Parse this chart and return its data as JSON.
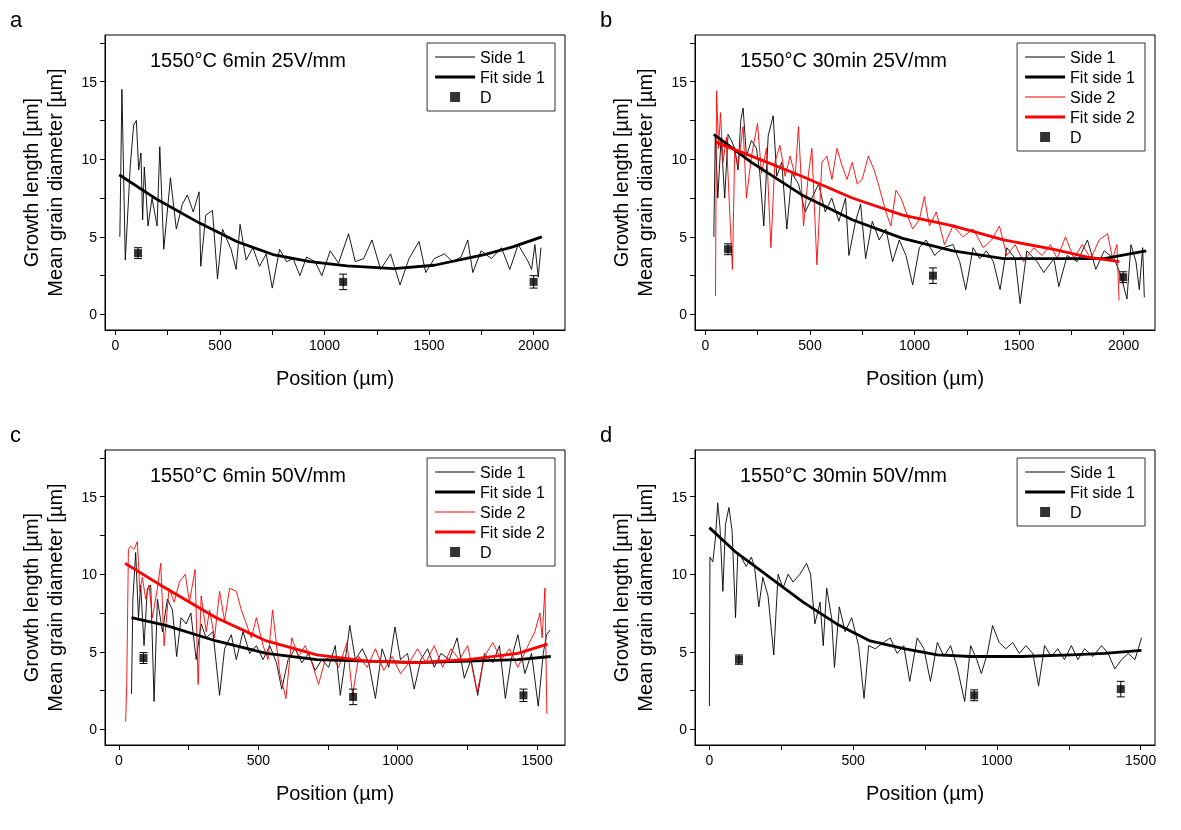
{
  "chart_data": [
    {
      "type": "line",
      "title": "1550°C 6min 25V/mm",
      "annotations": [
        "a"
      ],
      "xlabel": "Position (µm)",
      "ylabel": "Growth length [µm]\nMean grain diameter [µm]",
      "xlim": [
        -50,
        2150
      ],
      "ylim": [
        -1,
        18
      ],
      "xticks": [
        0,
        {
          "value": 250,
          "label": null
        },
        500,
        {
          "value": 750,
          "label": null
        },
        1000,
        {
          "value": 1250,
          "label": null
        },
        1500,
        {
          "value": 1750,
          "label": null
        },
        2000
      ],
      "yticks": [
        0,
        {
          "value": 2.5,
          "label": null
        },
        5,
        {
          "value": 7.5,
          "label": null
        },
        10,
        {
          "value": 12.5,
          "label": null
        },
        15,
        {
          "value": 17.5,
          "label": null
        }
      ],
      "legend": "top right",
      "grid": false,
      "series": [
        {
          "name": "Side 1",
          "type": "line",
          "color": "#000000",
          "x": [
            21,
            31,
            47,
            71,
            87,
            100,
            111,
            122,
            130,
            138,
            156,
            175,
            199,
            212,
            231,
            263,
            291,
            320,
            344,
            372,
            400,
            408,
            432,
            464,
            488,
            512,
            553,
            577,
            596,
            625,
            657,
            689,
            721,
            750,
            785,
            818,
            850,
            882,
            914,
            955,
            987,
            1027,
            1067,
            1115,
            1147,
            1187,
            1227,
            1268,
            1316,
            1361,
            1404,
            1452,
            1484,
            1525,
            1573,
            1613,
            1653,
            1685,
            1709,
            1749,
            1798,
            1846,
            1886,
            1926,
            1974,
            1990,
            2006,
            2022,
            2035
          ],
          "values": [
            5.0,
            14.5,
            3.5,
            9.6,
            12.2,
            12.5,
            9.3,
            10.4,
            6.1,
            9.5,
            5.7,
            7.5,
            5.7,
            10.8,
            4.2,
            8.8,
            5.5,
            7.1,
            7.7,
            6.6,
            7.9,
            3.1,
            6.4,
            6.7,
            2.3,
            5.5,
            4.2,
            2.9,
            5.8,
            3.5,
            4.3,
            3.1,
            3.9,
            1.7,
            4.2,
            3.4,
            3.6,
            2.5,
            3.7,
            3.4,
            2.5,
            4.1,
            3.3,
            5.2,
            3.4,
            3.6,
            4.8,
            2.9,
            3.9,
            1.9,
            3.6,
            4.7,
            2.7,
            3.6,
            3.9,
            3.4,
            3.7,
            4.8,
            2.7,
            4.1,
            3.6,
            4.3,
            2.9,
            4.5,
            3.4,
            2.9,
            4.5,
            2.4,
            4.3
          ]
        },
        {
          "name": "Fit side 1",
          "type": "line",
          "color": "#000000",
          "x": [
            18,
            200,
            400,
            580,
            753,
            930,
            1107,
            1332,
            1525,
            1765,
            1900,
            2039
          ],
          "values": [
            9.0,
            7.4,
            5.9,
            4.7,
            3.86,
            3.4,
            3.13,
            2.95,
            3.17,
            3.86,
            4.35,
            5.0
          ]
        },
        {
          "name": "D",
          "type": "scatter",
          "marker": "square",
          "color": "#000000",
          "x": [
            108,
            1089,
            2000
          ],
          "values": [
            3.95,
            2.1,
            2.1
          ],
          "errors": [
            0.35,
            0.5,
            0.4
          ]
        }
      ]
    },
    {
      "type": "line",
      "title": "1550°C 30min 25V/mm",
      "annotations": [
        "b"
      ],
      "xlabel": "Position (µm)",
      "ylabel": "Growth length [µm]\nMean grain diameter [µm]",
      "xlim": [
        -50,
        2150
      ],
      "ylim": [
        -1,
        18
      ],
      "xticks": [
        0,
        {
          "value": 250,
          "label": null
        },
        500,
        {
          "value": 750,
          "label": null
        },
        1000,
        {
          "value": 1250,
          "label": null
        },
        1500,
        {
          "value": 1750,
          "label": null
        },
        2000
      ],
      "yticks": [
        0,
        {
          "value": 2.5,
          "label": null
        },
        5,
        {
          "value": 7.5,
          "label": null
        },
        10,
        {
          "value": 12.5,
          "label": null
        },
        15,
        {
          "value": 17.5,
          "label": null
        }
      ],
      "legend": "top right",
      "grid": false,
      "series": [
        {
          "name": "Side 1",
          "type": "line",
          "color": "#000000",
          "x": [
            40,
            47,
            59,
            75,
            92,
            108,
            124,
            140,
            156,
            169,
            180,
            196,
            220,
            244,
            260,
            279,
            300,
            324,
            341,
            365,
            389,
            414,
            445,
            477,
            509,
            541,
            573,
            604,
            638,
            670,
            686,
            718,
            742,
            766,
            798,
            831,
            863,
            895,
            927,
            959,
            991,
            1023,
            1055,
            1096,
            1136,
            1184,
            1216,
            1245,
            1280,
            1312,
            1344,
            1377,
            1409,
            1441,
            1481,
            1505,
            1537,
            1586,
            1618,
            1666,
            1690,
            1730,
            1778,
            1827,
            1867,
            1907,
            1955,
            1987,
            2016,
            2035,
            2059,
            2075,
            2091,
            2099
          ],
          "values": [
            5.0,
            11.6,
            7.5,
            11.4,
            7.5,
            11.6,
            11.2,
            10.7,
            9.3,
            12.5,
            13.3,
            10.2,
            11.2,
            10.7,
            9.1,
            5.7,
            11.5,
            12.8,
            8.9,
            9.8,
            5.5,
            9.1,
            8.4,
            6.6,
            7.5,
            8.4,
            6.6,
            7.5,
            6.0,
            7.5,
            3.8,
            6.0,
            7.1,
            3.6,
            6.0,
            4.8,
            5.5,
            3.4,
            4.8,
            3.8,
            1.9,
            4.3,
            4.8,
            3.8,
            4.3,
            4.5,
            3.4,
            1.6,
            4.3,
            3.6,
            4.1,
            3.4,
            1.6,
            4.3,
            3.6,
            0.7,
            4.1,
            3.4,
            2.7,
            3.6,
            1.8,
            3.8,
            3.4,
            4.8,
            2.9,
            4.1,
            3.6,
            2.5,
            1.0,
            4.5,
            3.4,
            1.6,
            4.3,
            1.1
          ]
        },
        {
          "name": "Fit side 1",
          "type": "line",
          "color": "#000000",
          "x": [
            40,
            220,
            461,
            702,
            943,
            1184,
            1425,
            1666,
            1907,
            2108
          ],
          "values": [
            11.6,
            9.8,
            7.7,
            6.1,
            4.9,
            4.1,
            3.6,
            3.6,
            3.6,
            4.1
          ]
        },
        {
          "name": "Side 2",
          "type": "line",
          "color": "#ff0000",
          "x": [
            48,
            53,
            63,
            72,
            84,
            100,
            116,
            129,
            140,
            156,
            180,
            196,
            220,
            249,
            268,
            292,
            313,
            332,
            356,
            381,
            405,
            429,
            445,
            469,
            493,
            509,
            533,
            557,
            581,
            605,
            629,
            653,
            677,
            702,
            726,
            750,
            779,
            807,
            831,
            863,
            887,
            911,
            935,
            959,
            991,
            1023,
            1047,
            1071,
            1104,
            1143,
            1184,
            1232,
            1280,
            1329,
            1369,
            1406,
            1441,
            1481,
            1521,
            1570,
            1610,
            1650,
            1682,
            1722,
            1762,
            1802,
            1843,
            1883,
            1923,
            1947,
            1968,
            1978
          ],
          "values": [
            1.2,
            14.4,
            10.7,
            13.0,
            9.8,
            11.4,
            6.6,
            2.9,
            10.5,
            9.6,
            12.1,
            7.5,
            10.2,
            12.3,
            9.1,
            10.7,
            4.3,
            9.8,
            10.9,
            8.9,
            10.2,
            8.9,
            12.1,
            5.7,
            9.1,
            10.7,
            3.2,
            9.8,
            10.2,
            8.7,
            10.7,
            9.6,
            8.7,
            9.8,
            8.4,
            8.7,
            10.2,
            9.3,
            8.2,
            6.6,
            5.7,
            8.0,
            7.5,
            6.6,
            5.5,
            6.1,
            7.6,
            5.7,
            6.6,
            4.5,
            5.7,
            5.0,
            5.5,
            4.3,
            4.8,
            5.7,
            3.8,
            4.5,
            3.4,
            4.3,
            3.8,
            4.5,
            3.6,
            5.0,
            3.6,
            4.5,
            3.6,
            4.8,
            5.2,
            3.6,
            4.5,
            0.9
          ]
        },
        {
          "name": "Fit side 2",
          "type": "line",
          "color": "#ff0000",
          "x": [
            48,
            220,
            461,
            702,
            943,
            1184,
            1425,
            1666,
            1827,
            1979
          ],
          "values": [
            11.1,
            10.2,
            8.9,
            7.5,
            6.4,
            5.7,
            4.8,
            4.2,
            3.7,
            3.4
          ]
        },
        {
          "name": "D",
          "type": "scatter",
          "marker": "square",
          "color": "#000000",
          "x": [
            108,
            1088,
            1998
          ],
          "values": [
            4.2,
            2.5,
            2.4
          ],
          "errors": [
            0.35,
            0.5,
            0.35
          ]
        }
      ]
    },
    {
      "type": "line",
      "title": "1550°C 6min 50V/mm",
      "annotations": [
        "c"
      ],
      "xlabel": "Position (µm)",
      "ylabel": "Growth length [µm]\nMean grain diameter [µm]",
      "xlim": [
        -50,
        1600
      ],
      "ylim": [
        -1,
        18
      ],
      "xticks": [
        0,
        {
          "value": 250,
          "label": null
        },
        500,
        {
          "value": 750,
          "label": null
        },
        1000,
        {
          "value": 1250,
          "label": null
        },
        1500
      ],
      "yticks": [
        0,
        {
          "value": 2.5,
          "label": null
        },
        5,
        {
          "value": 7.5,
          "label": null
        },
        10,
        {
          "value": 12.5,
          "label": null
        },
        15,
        {
          "value": 17.5,
          "label": null
        }
      ],
      "legend": "top right",
      "grid": false,
      "series": [
        {
          "name": "Side 1",
          "type": "line",
          "color": "#000000",
          "x": [
            45,
            50,
            60,
            70,
            78,
            90,
            102,
            114,
            126,
            138,
            156,
            174,
            192,
            207,
            223,
            241,
            258,
            277,
            295,
            313,
            337,
            361,
            379,
            403,
            421,
            445,
            469,
            493,
            517,
            541,
            565,
            584,
            607,
            632,
            656,
            680,
            704,
            728,
            752,
            776,
            794,
            812,
            828,
            848,
            873,
            896,
            920,
            944,
            968,
            990,
            1010,
            1035,
            1059,
            1083,
            1107,
            1131,
            1155,
            1185,
            1213,
            1239,
            1263,
            1287,
            1311,
            1341,
            1365,
            1386,
            1407,
            1431,
            1456,
            1480,
            1504,
            1522,
            1534,
            1546
          ],
          "values": [
            2.3,
            8.4,
            11.4,
            7.2,
            9.3,
            5.4,
            9.1,
            9.3,
            1.8,
            8.4,
            6.3,
            8.4,
            7.7,
            4.7,
            7.2,
            6.8,
            7.5,
            4.5,
            6.8,
            5.9,
            6.3,
            2.2,
            5.2,
            6.1,
            4.5,
            6.3,
            4.9,
            5.4,
            4.5,
            5.4,
            4.3,
            2.6,
            4.5,
            5.2,
            4.3,
            4.9,
            3.8,
            4.5,
            4.0,
            5.4,
            2.2,
            4.5,
            6.7,
            4.5,
            5.2,
            4.3,
            2.0,
            5.2,
            4.0,
            6.6,
            4.5,
            4.9,
            2.6,
            4.5,
            5.2,
            4.0,
            4.9,
            4.5,
            5.9,
            3.3,
            4.5,
            2.2,
            4.9,
            4.3,
            5.4,
            2.0,
            4.5,
            6.1,
            3.6,
            4.9,
            1.5,
            4.9,
            6.1,
            6.4
          ]
        },
        {
          "name": "Fit side 1",
          "type": "line",
          "color": "#000000",
          "x": [
            45,
            168,
            349,
            529,
            710,
            890,
            1071,
            1251,
            1431,
            1549
          ],
          "values": [
            7.2,
            6.7,
            5.7,
            4.9,
            4.5,
            4.4,
            4.3,
            4.4,
            4.5,
            4.7
          ]
        },
        {
          "name": "Side 2",
          "type": "line",
          "color": "#ff0000",
          "x": [
            24,
            28,
            34,
            42,
            54,
            66,
            75,
            84,
            96,
            108,
            120,
            138,
            150,
            162,
            180,
            198,
            217,
            238,
            253,
            273,
            284,
            295,
            313,
            325,
            343,
            361,
            379,
            397,
            421,
            439,
            457,
            475,
            493,
            517,
            535,
            551,
            577,
            599,
            620,
            644,
            668,
            692,
            716,
            740,
            764,
            788,
            818,
            838,
            860,
            890,
            920,
            950,
            980,
            1010,
            1041,
            1071,
            1101,
            1131,
            1161,
            1191,
            1221,
            1251,
            1285,
            1311,
            1341,
            1371,
            1401,
            1431,
            1462,
            1492,
            1510,
            1518,
            1528,
            1535
          ],
          "values": [
            0.5,
            2.9,
            11.6,
            11.8,
            11.6,
            12.1,
            8.9,
            9.8,
            8.4,
            9.3,
            7.2,
            9.1,
            10.7,
            5.4,
            9.1,
            8.2,
            9.5,
            10.0,
            8.2,
            10.3,
            2.9,
            8.6,
            6.3,
            7.7,
            5.9,
            8.9,
            7.0,
            9.1,
            8.9,
            7.7,
            6.8,
            5.9,
            7.2,
            5.4,
            4.5,
            7.7,
            3.6,
            2.0,
            5.9,
            4.7,
            5.4,
            4.3,
            2.9,
            4.5,
            4.7,
            4.0,
            5.6,
            2.2,
            4.7,
            4.0,
            5.2,
            3.8,
            4.7,
            3.6,
            4.3,
            5.2,
            4.3,
            5.4,
            4.0,
            5.2,
            4.5,
            5.4,
            2.4,
            4.7,
            5.6,
            4.5,
            5.2,
            4.0,
            5.2,
            6.3,
            7.5,
            5.9,
            9.1,
            1.0
          ]
        },
        {
          "name": "Fit side 2",
          "type": "line",
          "color": "#ff0000",
          "x": [
            22,
            168,
            349,
            529,
            710,
            890,
            1071,
            1251,
            1431,
            1537
          ],
          "values": [
            10.7,
            9.1,
            7.2,
            5.7,
            4.8,
            4.4,
            4.3,
            4.5,
            4.9,
            5.5
          ]
        },
        {
          "name": "D",
          "type": "scatter",
          "marker": "square",
          "color": "#000000",
          "x": [
            88,
            840,
            1451
          ],
          "values": [
            4.6,
            2.1,
            2.2
          ],
          "errors": [
            0.35,
            0.5,
            0.4
          ]
        }
      ]
    },
    {
      "type": "line",
      "title": "1550°C 30min 50V/mm",
      "annotations": [
        "d"
      ],
      "xlabel": "Position (µm)",
      "ylabel": "Growth length [µm]\nMean grain diameter [µm]",
      "xlim": [
        -50,
        1550
      ],
      "ylim": [
        -1,
        18
      ],
      "xticks": [
        0,
        {
          "value": 250,
          "label": null
        },
        500,
        {
          "value": 750,
          "label": null
        },
        1000,
        {
          "value": 1250,
          "label": null
        },
        1500
      ],
      "yticks": [
        0,
        {
          "value": 2.5,
          "label": null
        },
        5,
        {
          "value": 7.5,
          "label": null
        },
        10,
        {
          "value": 12.5,
          "label": null
        },
        15,
        {
          "value": 17.5,
          "label": null
        }
      ],
      "legend": "top right",
      "grid": false,
      "series": [
        {
          "name": "Side 1",
          "type": "line",
          "color": "#000000",
          "x": [
            0,
            2,
            12,
            21,
            29,
            37,
            47,
            56,
            68,
            79,
            91,
            99,
            111,
            128,
            146,
            157,
            172,
            186,
            204,
            224,
            239,
            256,
            274,
            291,
            315,
            338,
            352,
            367,
            385,
            396,
            408,
            425,
            435,
            452,
            472,
            495,
            519,
            538,
            554,
            577,
            606,
            629,
            653,
            676,
            697,
            723,
            746,
            769,
            793,
            816,
            839,
            862,
            888,
            909,
            930,
            946,
            967,
            985,
            1008,
            1031,
            1055,
            1078,
            1101,
            1125,
            1145,
            1166,
            1189,
            1212,
            1235,
            1259,
            1282,
            1305,
            1334,
            1364,
            1387,
            1410,
            1434,
            1457,
            1480,
            1492,
            1503
          ],
          "values": [
            1.5,
            11.1,
            10.8,
            12.3,
            14.6,
            13.0,
            8.9,
            13.2,
            14.3,
            12.8,
            7.2,
            11.4,
            11.1,
            10.5,
            11.1,
            10.5,
            7.9,
            9.8,
            8.6,
            4.8,
            10.0,
            9.1,
            10.0,
            9.5,
            10.0,
            10.7,
            10.0,
            6.8,
            8.2,
            5.4,
            9.1,
            7.2,
            4.0,
            7.9,
            6.3,
            7.2,
            5.4,
            2.0,
            5.4,
            5.2,
            5.6,
            5.9,
            4.9,
            5.4,
            3.1,
            5.9,
            5.2,
            3.1,
            5.6,
            4.7,
            5.4,
            4.0,
            1.8,
            5.4,
            4.5,
            3.6,
            4.9,
            6.7,
            5.6,
            5.2,
            5.6,
            4.9,
            5.4,
            4.9,
            2.8,
            5.4,
            4.7,
            5.2,
            4.5,
            5.4,
            4.5,
            5.2,
            4.7,
            5.4,
            4.9,
            3.9,
            4.5,
            4.9,
            4.5,
            5.2,
            5.9
          ]
        },
        {
          "name": "Fit side 1",
          "type": "line",
          "color": "#000000",
          "x": [
            0,
            93,
            210,
            326,
            443,
            559,
            676,
            793,
            909,
            1084,
            1259,
            1375,
            1503
          ],
          "values": [
            13.0,
            11.4,
            9.8,
            8.2,
            6.8,
            5.7,
            5.2,
            4.8,
            4.7,
            4.7,
            4.8,
            4.9,
            5.1
          ]
        },
        {
          "name": "D",
          "type": "scatter",
          "marker": "square",
          "color": "#000000",
          "x": [
            103,
            921,
            1431
          ],
          "values": [
            4.5,
            2.2,
            2.6
          ],
          "errors": [
            0.3,
            0.35,
            0.5
          ]
        }
      ]
    }
  ]
}
